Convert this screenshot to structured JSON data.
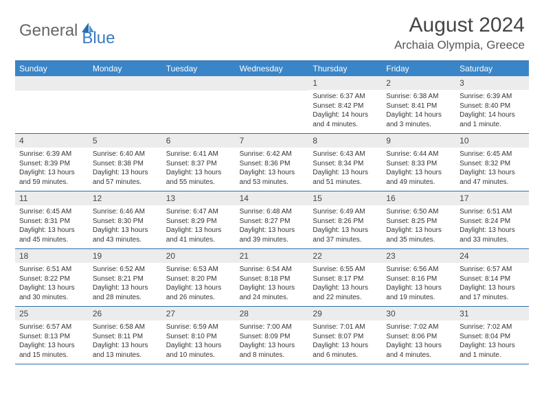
{
  "logo": {
    "text1": "General",
    "text2": "Blue"
  },
  "title": {
    "month": "August 2024",
    "location": "Archaia Olympia, Greece"
  },
  "colors": {
    "header_bg": "#3a85c7",
    "border": "#2d6da8",
    "daynum_bg": "#ececec",
    "text": "#333333",
    "logo_blue": "#3a7bbf"
  },
  "typography": {
    "month_fontsize": 30,
    "loc_fontsize": 17,
    "day_fontsize": 12,
    "info_fontsize": 10
  },
  "dayNames": [
    "Sunday",
    "Monday",
    "Tuesday",
    "Wednesday",
    "Thursday",
    "Friday",
    "Saturday"
  ],
  "weeks": [
    [
      {
        "day": "",
        "sunrise": "",
        "sunset": "",
        "daylight": ""
      },
      {
        "day": "",
        "sunrise": "",
        "sunset": "",
        "daylight": ""
      },
      {
        "day": "",
        "sunrise": "",
        "sunset": "",
        "daylight": ""
      },
      {
        "day": "",
        "sunrise": "",
        "sunset": "",
        "daylight": ""
      },
      {
        "day": "1",
        "sunrise": "Sunrise: 6:37 AM",
        "sunset": "Sunset: 8:42 PM",
        "daylight": "Daylight: 14 hours and 4 minutes."
      },
      {
        "day": "2",
        "sunrise": "Sunrise: 6:38 AM",
        "sunset": "Sunset: 8:41 PM",
        "daylight": "Daylight: 14 hours and 3 minutes."
      },
      {
        "day": "3",
        "sunrise": "Sunrise: 6:39 AM",
        "sunset": "Sunset: 8:40 PM",
        "daylight": "Daylight: 14 hours and 1 minute."
      }
    ],
    [
      {
        "day": "4",
        "sunrise": "Sunrise: 6:39 AM",
        "sunset": "Sunset: 8:39 PM",
        "daylight": "Daylight: 13 hours and 59 minutes."
      },
      {
        "day": "5",
        "sunrise": "Sunrise: 6:40 AM",
        "sunset": "Sunset: 8:38 PM",
        "daylight": "Daylight: 13 hours and 57 minutes."
      },
      {
        "day": "6",
        "sunrise": "Sunrise: 6:41 AM",
        "sunset": "Sunset: 8:37 PM",
        "daylight": "Daylight: 13 hours and 55 minutes."
      },
      {
        "day": "7",
        "sunrise": "Sunrise: 6:42 AM",
        "sunset": "Sunset: 8:36 PM",
        "daylight": "Daylight: 13 hours and 53 minutes."
      },
      {
        "day": "8",
        "sunrise": "Sunrise: 6:43 AM",
        "sunset": "Sunset: 8:34 PM",
        "daylight": "Daylight: 13 hours and 51 minutes."
      },
      {
        "day": "9",
        "sunrise": "Sunrise: 6:44 AM",
        "sunset": "Sunset: 8:33 PM",
        "daylight": "Daylight: 13 hours and 49 minutes."
      },
      {
        "day": "10",
        "sunrise": "Sunrise: 6:45 AM",
        "sunset": "Sunset: 8:32 PM",
        "daylight": "Daylight: 13 hours and 47 minutes."
      }
    ],
    [
      {
        "day": "11",
        "sunrise": "Sunrise: 6:45 AM",
        "sunset": "Sunset: 8:31 PM",
        "daylight": "Daylight: 13 hours and 45 minutes."
      },
      {
        "day": "12",
        "sunrise": "Sunrise: 6:46 AM",
        "sunset": "Sunset: 8:30 PM",
        "daylight": "Daylight: 13 hours and 43 minutes."
      },
      {
        "day": "13",
        "sunrise": "Sunrise: 6:47 AM",
        "sunset": "Sunset: 8:29 PM",
        "daylight": "Daylight: 13 hours and 41 minutes."
      },
      {
        "day": "14",
        "sunrise": "Sunrise: 6:48 AM",
        "sunset": "Sunset: 8:27 PM",
        "daylight": "Daylight: 13 hours and 39 minutes."
      },
      {
        "day": "15",
        "sunrise": "Sunrise: 6:49 AM",
        "sunset": "Sunset: 8:26 PM",
        "daylight": "Daylight: 13 hours and 37 minutes."
      },
      {
        "day": "16",
        "sunrise": "Sunrise: 6:50 AM",
        "sunset": "Sunset: 8:25 PM",
        "daylight": "Daylight: 13 hours and 35 minutes."
      },
      {
        "day": "17",
        "sunrise": "Sunrise: 6:51 AM",
        "sunset": "Sunset: 8:24 PM",
        "daylight": "Daylight: 13 hours and 33 minutes."
      }
    ],
    [
      {
        "day": "18",
        "sunrise": "Sunrise: 6:51 AM",
        "sunset": "Sunset: 8:22 PM",
        "daylight": "Daylight: 13 hours and 30 minutes."
      },
      {
        "day": "19",
        "sunrise": "Sunrise: 6:52 AM",
        "sunset": "Sunset: 8:21 PM",
        "daylight": "Daylight: 13 hours and 28 minutes."
      },
      {
        "day": "20",
        "sunrise": "Sunrise: 6:53 AM",
        "sunset": "Sunset: 8:20 PM",
        "daylight": "Daylight: 13 hours and 26 minutes."
      },
      {
        "day": "21",
        "sunrise": "Sunrise: 6:54 AM",
        "sunset": "Sunset: 8:18 PM",
        "daylight": "Daylight: 13 hours and 24 minutes."
      },
      {
        "day": "22",
        "sunrise": "Sunrise: 6:55 AM",
        "sunset": "Sunset: 8:17 PM",
        "daylight": "Daylight: 13 hours and 22 minutes."
      },
      {
        "day": "23",
        "sunrise": "Sunrise: 6:56 AM",
        "sunset": "Sunset: 8:16 PM",
        "daylight": "Daylight: 13 hours and 19 minutes."
      },
      {
        "day": "24",
        "sunrise": "Sunrise: 6:57 AM",
        "sunset": "Sunset: 8:14 PM",
        "daylight": "Daylight: 13 hours and 17 minutes."
      }
    ],
    [
      {
        "day": "25",
        "sunrise": "Sunrise: 6:57 AM",
        "sunset": "Sunset: 8:13 PM",
        "daylight": "Daylight: 13 hours and 15 minutes."
      },
      {
        "day": "26",
        "sunrise": "Sunrise: 6:58 AM",
        "sunset": "Sunset: 8:11 PM",
        "daylight": "Daylight: 13 hours and 13 minutes."
      },
      {
        "day": "27",
        "sunrise": "Sunrise: 6:59 AM",
        "sunset": "Sunset: 8:10 PM",
        "daylight": "Daylight: 13 hours and 10 minutes."
      },
      {
        "day": "28",
        "sunrise": "Sunrise: 7:00 AM",
        "sunset": "Sunset: 8:09 PM",
        "daylight": "Daylight: 13 hours and 8 minutes."
      },
      {
        "day": "29",
        "sunrise": "Sunrise: 7:01 AM",
        "sunset": "Sunset: 8:07 PM",
        "daylight": "Daylight: 13 hours and 6 minutes."
      },
      {
        "day": "30",
        "sunrise": "Sunrise: 7:02 AM",
        "sunset": "Sunset: 8:06 PM",
        "daylight": "Daylight: 13 hours and 4 minutes."
      },
      {
        "day": "31",
        "sunrise": "Sunrise: 7:02 AM",
        "sunset": "Sunset: 8:04 PM",
        "daylight": "Daylight: 13 hours and 1 minute."
      }
    ]
  ]
}
